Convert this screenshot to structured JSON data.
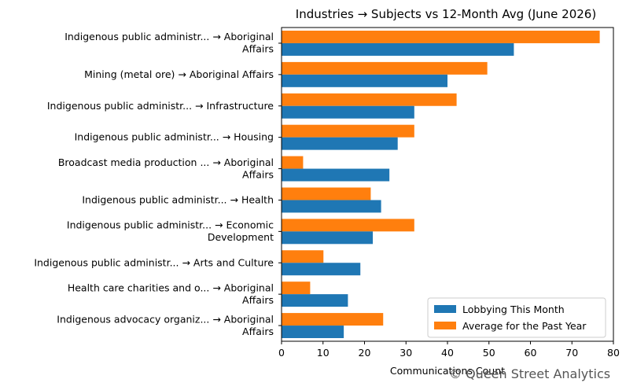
{
  "chart_data": {
    "type": "bar",
    "orientation": "horizontal",
    "title": "Industries → Subjects vs 12-Month Avg (June 2026)",
    "xlabel": "Communications Count",
    "ylabel": "",
    "xlim": [
      0,
      80
    ],
    "xticks": [
      0,
      10,
      20,
      30,
      40,
      50,
      60,
      70,
      80
    ],
    "categories": [
      [
        "Indigenous public administr... → Aboriginal",
        "Affairs"
      ],
      [
        "Mining (metal ore) → Aboriginal Affairs"
      ],
      [
        "Indigenous public administr... → Infrastructure"
      ],
      [
        "Indigenous public administr... → Housing"
      ],
      [
        "Broadcast media production ... → Aboriginal",
        "Affairs"
      ],
      [
        "Indigenous public administr... → Health"
      ],
      [
        "Indigenous public administr... → Economic",
        "Development"
      ],
      [
        "Indigenous public administr... → Arts and Culture"
      ],
      [
        "Health care charities and o... → Aboriginal",
        "Affairs"
      ],
      [
        "Indigenous advocacy organiz... → Aboriginal",
        "Affairs"
      ]
    ],
    "series": [
      {
        "name": "Lobbying This Month",
        "color": "#1f77b4",
        "values": [
          56,
          40,
          32,
          28,
          26,
          24,
          22,
          19,
          16,
          15
        ]
      },
      {
        "name": "Average for the Past Year",
        "color": "#ff7f0e",
        "values": [
          76.7,
          49.6,
          42.2,
          32.0,
          5.2,
          21.5,
          32.0,
          10.1,
          6.9,
          24.5
        ]
      }
    ],
    "legend_position": "lower right",
    "grid": false
  },
  "watermark": "© Queen Street Analytics"
}
